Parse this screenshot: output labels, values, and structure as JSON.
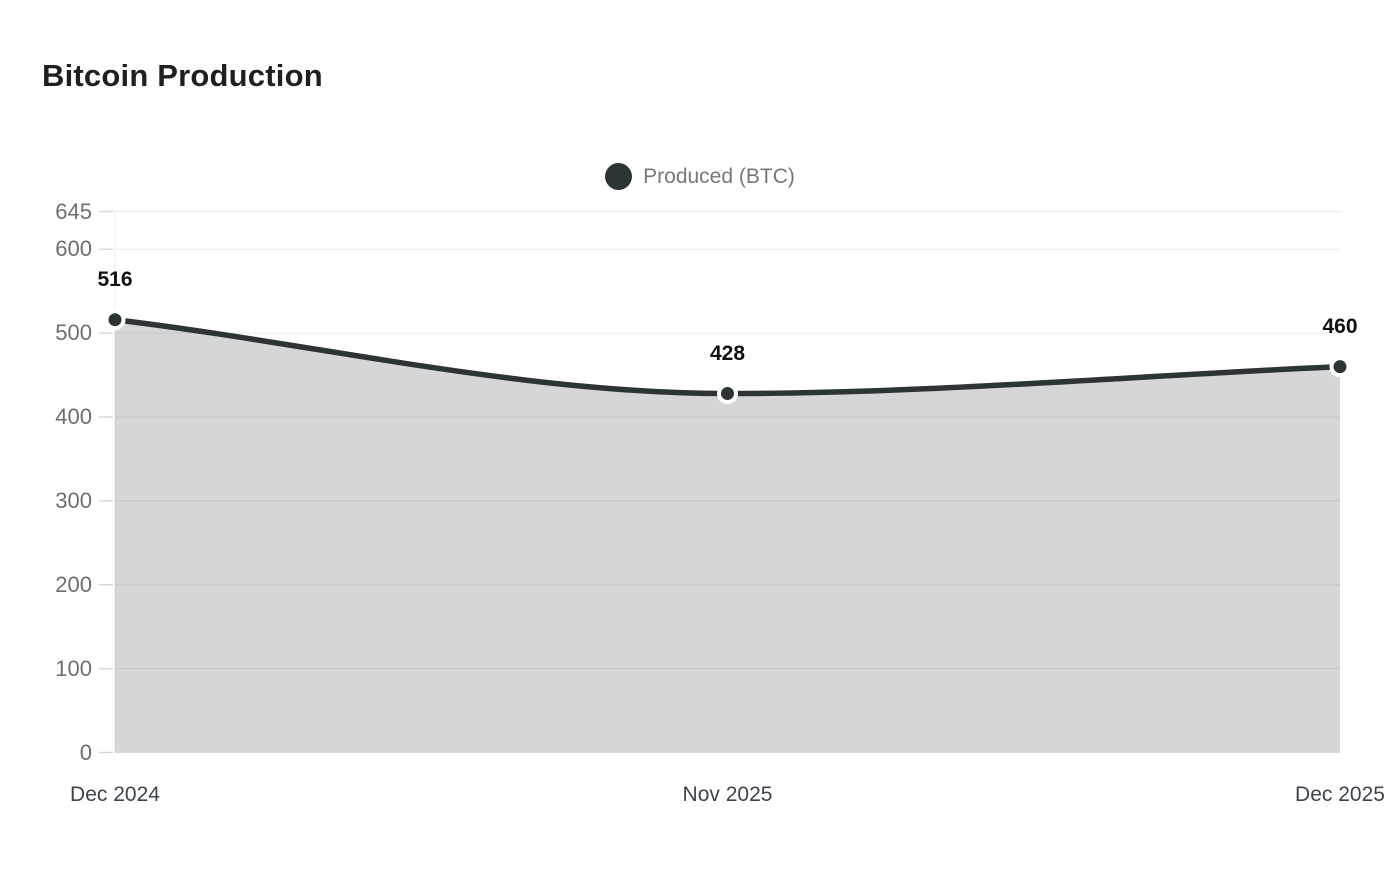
{
  "chart": {
    "title": "Bitcoin Production",
    "legend_label": "Produced (BTC)"
  },
  "chart_data": {
    "type": "area",
    "title": "Bitcoin Production",
    "categories": [
      "Dec 2024",
      "Nov 2025",
      "Dec 2025"
    ],
    "series": [
      {
        "name": "Produced (BTC)",
        "values": [
          516,
          428,
          460
        ]
      }
    ],
    "data_labels": [
      "516",
      "428",
      "460"
    ],
    "y_ticks": [
      645,
      600,
      500,
      400,
      300,
      200,
      100,
      0
    ],
    "ylim": [
      0,
      645
    ],
    "xlabel": "",
    "ylabel": "",
    "grid": "horizontal",
    "legend_position": "top-center",
    "curve": "monotone",
    "colors": {
      "line": "#2d3436",
      "point_fill": "#2d3436",
      "point_ring": "#ffffff",
      "area_fill": "#2d3436",
      "area_opacity": 0.2,
      "gridline": "#ebebeb",
      "tick_mark": "#d9d9d9",
      "y_tick_text": "#6f6f6f",
      "x_label_text": "#3d444b",
      "data_label_text": "#101010",
      "legend_text": "#75787b",
      "title_text": "#1f1f1f",
      "background": "#ffffff"
    }
  }
}
